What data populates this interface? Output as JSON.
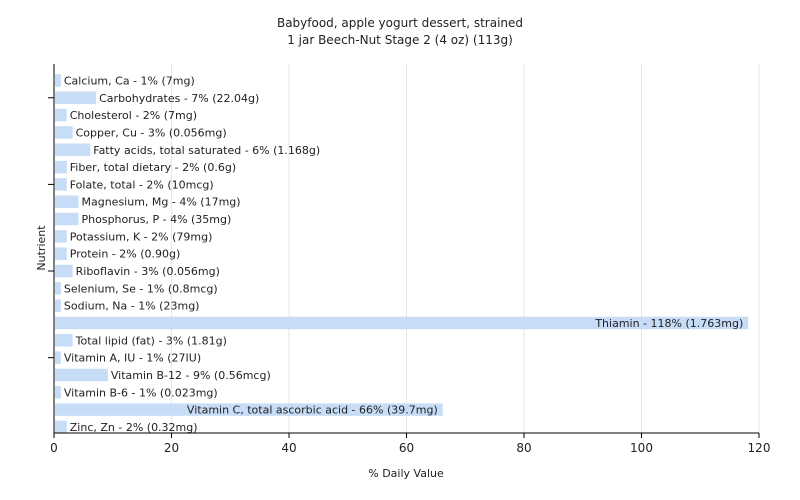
{
  "chart_data": {
    "type": "bar",
    "orientation": "horizontal",
    "title": "Babyfood, apple yogurt dessert, strained",
    "subtitle": "1 jar Beech-Nut Stage 2 (4 oz) (113g)",
    "xlabel": "% Daily Value",
    "ylabel": "Nutrient",
    "xlim": [
      0,
      120
    ],
    "xticks": [
      0,
      20,
      40,
      60,
      80,
      100,
      120
    ],
    "grid": true,
    "bar_color": "#c6dcf7",
    "categories": [
      "Calcium, Ca",
      "Carbohydrates",
      "Cholesterol",
      "Copper, Cu",
      "Fatty acids, total saturated",
      "Fiber, total dietary",
      "Folate, total",
      "Magnesium, Mg",
      "Phosphorus, P",
      "Potassium, K",
      "Protein",
      "Riboflavin",
      "Selenium, Se",
      "Sodium, Na",
      "Thiamin",
      "Total lipid (fat)",
      "Vitamin A, IU",
      "Vitamin B-12",
      "Vitamin B-6",
      "Vitamin C, total ascorbic acid",
      "Zinc, Zn"
    ],
    "values": [
      1,
      7,
      2,
      3,
      6,
      2,
      2,
      4,
      4,
      2,
      2,
      3,
      1,
      1,
      118,
      3,
      1,
      9,
      1,
      66,
      2
    ],
    "labels": [
      "Calcium, Ca - 1% (7mg)",
      "Carbohydrates - 7% (22.04g)",
      "Cholesterol - 2% (7mg)",
      "Copper, Cu - 3% (0.056mg)",
      "Fatty acids, total saturated - 6% (1.168g)",
      "Fiber, total dietary - 2% (0.6g)",
      "Folate, total - 2% (10mcg)",
      "Magnesium, Mg - 4% (17mg)",
      "Phosphorus, P - 4% (35mg)",
      "Potassium, K - 2% (79mg)",
      "Protein - 2% (0.90g)",
      "Riboflavin - 3% (0.056mg)",
      "Selenium, Se - 1% (0.8mcg)",
      "Sodium, Na - 1% (23mg)",
      "Thiamin - 118% (1.763mg)",
      "Total lipid (fat) - 3% (1.81g)",
      "Vitamin A, IU - 1% (27IU)",
      "Vitamin B-12 - 9% (0.56mcg)",
      "Vitamin B-6 - 1% (0.023mg)",
      "Vitamin C, total ascorbic acid - 66% (39.7mg)",
      "Zinc, Zn - 2% (0.32mg)"
    ]
  }
}
